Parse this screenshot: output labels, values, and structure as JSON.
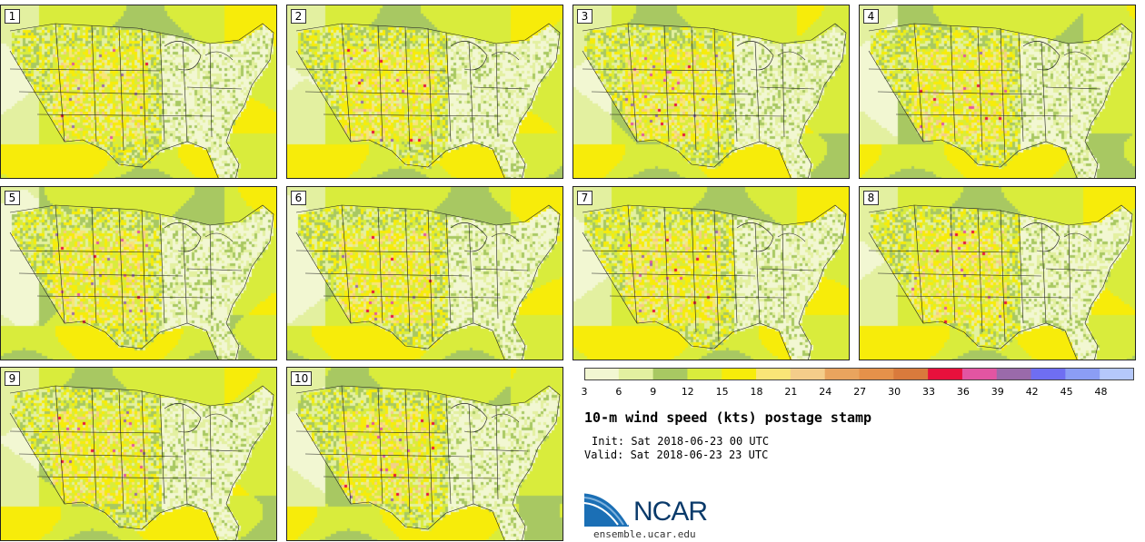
{
  "panels": [
    {
      "label": "1"
    },
    {
      "label": "2"
    },
    {
      "label": "3"
    },
    {
      "label": "4"
    },
    {
      "label": "5"
    },
    {
      "label": "6"
    },
    {
      "label": "7"
    },
    {
      "label": "8"
    },
    {
      "label": "9"
    },
    {
      "label": "10"
    }
  ],
  "colorbar": {
    "ticks": [
      "3",
      "6",
      "9",
      "12",
      "15",
      "18",
      "21",
      "24",
      "27",
      "30",
      "33",
      "36",
      "39",
      "42",
      "45",
      "48"
    ],
    "colors": [
      "#f2f7d2",
      "#e3f0a0",
      "#a8c862",
      "#d9ec3c",
      "#f7ec0a",
      "#f9e577",
      "#f4cd8a",
      "#e9a45e",
      "#e5914a",
      "#d97a3c",
      "#e8103c",
      "#e255a2",
      "#9a6aaa",
      "#6f6ef2",
      "#8b9df5",
      "#b5c8fa"
    ]
  },
  "title": "10-m wind speed (kts) postage stamp",
  "init": "Init: Sat 2018-06-23 00 UTC",
  "valid": "Valid: Sat 2018-06-23 23 UTC",
  "logo": {
    "text": "NCAR",
    "url_text": "ensemble.ucar.edu"
  }
}
